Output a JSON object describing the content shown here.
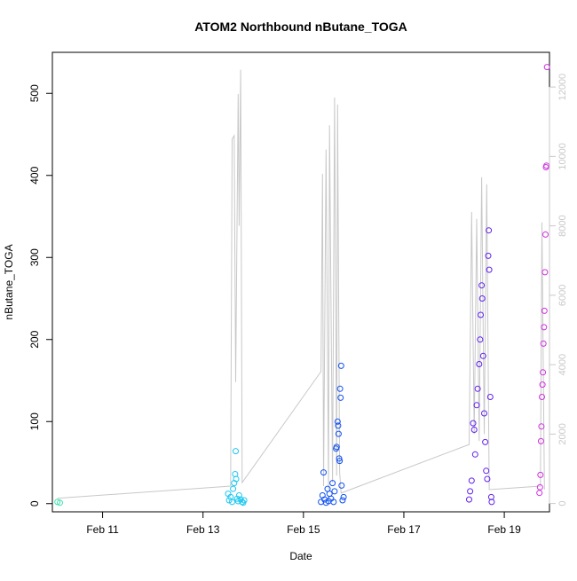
{
  "chart_data": {
    "type": "scatter",
    "title": "ATOM2 Northbound nButane_TOGA",
    "xlabel": "Date",
    "ylabel": "nButane_TOGA",
    "xlim": [
      "2017-02-10",
      "2017-02-19.9"
    ],
    "ylim": [
      -10,
      550
    ],
    "y2lim": [
      -240,
      13000
    ],
    "x_ticks": [
      {
        "date": "2017-02-11",
        "label": "Feb 11"
      },
      {
        "date": "2017-02-13",
        "label": "Feb 13"
      },
      {
        "date": "2017-02-15",
        "label": "Feb 15"
      },
      {
        "date": "2017-02-17",
        "label": "Feb 17"
      },
      {
        "date": "2017-02-19",
        "label": "Feb 19"
      }
    ],
    "y_ticks": [
      0,
      100,
      200,
      300,
      400,
      500
    ],
    "y2_ticks": [
      0,
      2000,
      4000,
      6000,
      8000,
      10000,
      12000
    ],
    "y2_color": "#c8c8c8",
    "grid": false,
    "legend": "none",
    "series": [
      {
        "color": "#40e0b0",
        "points": [
          [
            "2017-02-10.1",
            2
          ],
          [
            "2017-02-10.15",
            1
          ]
        ]
      },
      {
        "color": "#1ec8f0",
        "points": [
          [
            "2017-02-13.5",
            12
          ],
          [
            "2017-02-13.52",
            4
          ],
          [
            "2017-02-13.55",
            8
          ],
          [
            "2017-02-13.58",
            2
          ],
          [
            "2017-02-13.6",
            18
          ],
          [
            "2017-02-13.62",
            25
          ],
          [
            "2017-02-13.64",
            36
          ],
          [
            "2017-02-13.65",
            64
          ],
          [
            "2017-02-13.66",
            30
          ],
          [
            "2017-02-13.68",
            6
          ],
          [
            "2017-02-13.7",
            3
          ],
          [
            "2017-02-13.72",
            10
          ],
          [
            "2017-02-13.75",
            5
          ],
          [
            "2017-02-13.78",
            2
          ],
          [
            "2017-02-13.8",
            1
          ],
          [
            "2017-02-13.82",
            4
          ]
        ]
      },
      {
        "color": "#1050f0",
        "points": [
          [
            "2017-02-15.35",
            2
          ],
          [
            "2017-02-15.38",
            10
          ],
          [
            "2017-02-15.4",
            38
          ],
          [
            "2017-02-15.42",
            5
          ],
          [
            "2017-02-15.45",
            1
          ],
          [
            "2017-02-15.48",
            18
          ],
          [
            "2017-02-15.5",
            3
          ],
          [
            "2017-02-15.52",
            12
          ],
          [
            "2017-02-15.55",
            6
          ],
          [
            "2017-02-15.58",
            25
          ],
          [
            "2017-02-15.6",
            2
          ],
          [
            "2017-02-15.62",
            15
          ],
          [
            "2017-02-15.65",
            67
          ],
          [
            "2017-02-15.66",
            69
          ],
          [
            "2017-02-15.68",
            100
          ],
          [
            "2017-02-15.69",
            95
          ],
          [
            "2017-02-15.7",
            85
          ],
          [
            "2017-02-15.71",
            55
          ],
          [
            "2017-02-15.72",
            52
          ],
          [
            "2017-02-15.73",
            140
          ],
          [
            "2017-02-15.74",
            129
          ],
          [
            "2017-02-15.75",
            168
          ],
          [
            "2017-02-15.76",
            22
          ],
          [
            "2017-02-15.78",
            4
          ],
          [
            "2017-02-15.8",
            8
          ]
        ]
      },
      {
        "color": "#6020f0",
        "points": [
          [
            "2017-02-18.3",
            5
          ],
          [
            "2017-02-18.32",
            15
          ],
          [
            "2017-02-18.35",
            28
          ],
          [
            "2017-02-18.38",
            98
          ],
          [
            "2017-02-18.4",
            90
          ],
          [
            "2017-02-18.42",
            60
          ],
          [
            "2017-02-18.45",
            120
          ],
          [
            "2017-02-18.47",
            140
          ],
          [
            "2017-02-18.5",
            170
          ],
          [
            "2017-02-18.52",
            200
          ],
          [
            "2017-02-18.53",
            230
          ],
          [
            "2017-02-18.55",
            266
          ],
          [
            "2017-02-18.56",
            250
          ],
          [
            "2017-02-18.58",
            180
          ],
          [
            "2017-02-18.6",
            110
          ],
          [
            "2017-02-18.62",
            75
          ],
          [
            "2017-02-18.64",
            40
          ],
          [
            "2017-02-18.66",
            30
          ],
          [
            "2017-02-18.68",
            302
          ],
          [
            "2017-02-18.69",
            333
          ],
          [
            "2017-02-18.7",
            285
          ],
          [
            "2017-02-18.72",
            130
          ],
          [
            "2017-02-18.74",
            8
          ],
          [
            "2017-02-18.75",
            2
          ]
        ]
      },
      {
        "color": "#d030e0",
        "points": [
          [
            "2017-02-19.7",
            13
          ],
          [
            "2017-02-19.71",
            20
          ],
          [
            "2017-02-19.72",
            35
          ],
          [
            "2017-02-19.73",
            76
          ],
          [
            "2017-02-19.74",
            94
          ],
          [
            "2017-02-19.75",
            130
          ],
          [
            "2017-02-19.76",
            145
          ],
          [
            "2017-02-19.77",
            160
          ],
          [
            "2017-02-19.78",
            195
          ],
          [
            "2017-02-19.79",
            215
          ],
          [
            "2017-02-19.8",
            235
          ],
          [
            "2017-02-19.81",
            282
          ],
          [
            "2017-02-19.82",
            328
          ],
          [
            "2017-02-19.83",
            410
          ],
          [
            "2017-02-19.84",
            412
          ],
          [
            "2017-02-19.85",
            532
          ]
        ]
      }
    ],
    "line_series": {
      "axis": "y2",
      "color": "#c8c8c8",
      "points": [
        [
          "2017-02-10.1",
          150
        ],
        [
          "2017-02-13.55",
          500
        ],
        [
          "2017-02-13.58",
          10500
        ],
        [
          "2017-02-13.62",
          10600
        ],
        [
          "2017-02-13.65",
          3500
        ],
        [
          "2017-02-13.7",
          11800
        ],
        [
          "2017-02-13.72",
          8000
        ],
        [
          "2017-02-13.75",
          12500
        ],
        [
          "2017-02-13.78",
          600
        ],
        [
          "2017-02-15.35",
          3800
        ],
        [
          "2017-02-15.38",
          9500
        ],
        [
          "2017-02-15.4",
          500
        ],
        [
          "2017-02-15.45",
          10200
        ],
        [
          "2017-02-15.5",
          400
        ],
        [
          "2017-02-15.52",
          10900
        ],
        [
          "2017-02-15.58",
          600
        ],
        [
          "2017-02-15.62",
          11700
        ],
        [
          "2017-02-15.66",
          800
        ],
        [
          "2017-02-15.68",
          11500
        ],
        [
          "2017-02-15.72",
          900
        ],
        [
          "2017-02-15.75",
          300
        ],
        [
          "2017-02-18.3",
          1700
        ],
        [
          "2017-02-18.35",
          8400
        ],
        [
          "2017-02-18.4",
          2000
        ],
        [
          "2017-02-18.45",
          8200
        ],
        [
          "2017-02-18.5",
          1800
        ],
        [
          "2017-02-18.55",
          9400
        ],
        [
          "2017-02-18.6",
          2000
        ],
        [
          "2017-02-18.65",
          9200
        ],
        [
          "2017-02-18.7",
          400
        ],
        [
          "2017-02-19.72",
          500
        ],
        [
          "2017-02-19.75",
          8100
        ],
        [
          "2017-02-19.8",
          400
        ]
      ]
    }
  }
}
